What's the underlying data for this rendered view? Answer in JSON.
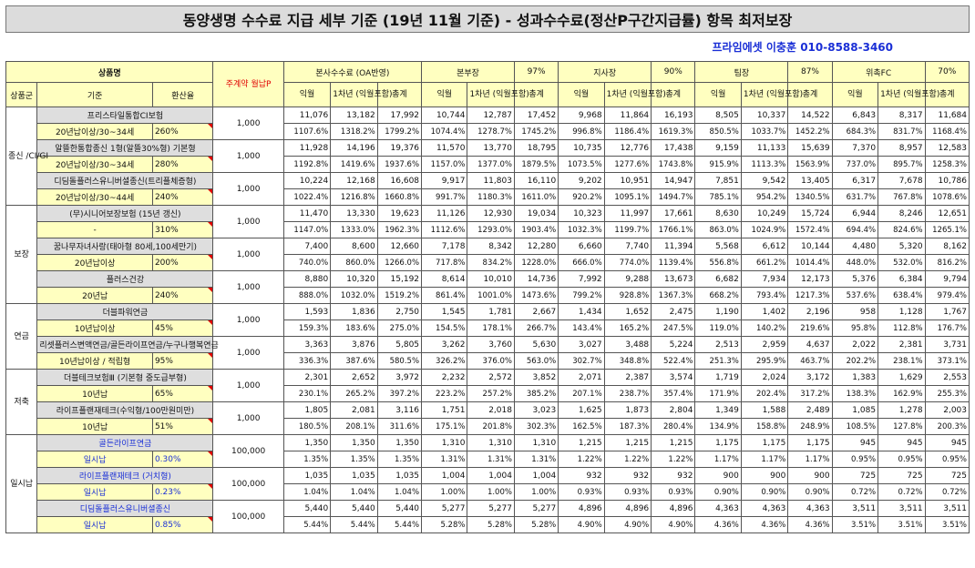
{
  "title": "동양생명 수수료 지급 세부 기준 (19년 11월 기준) - 성과수수료(정산P구간지급률) 항목 최저보장",
  "contact": "프라임에셋 이충훈 010-8588-3460",
  "header": {
    "product_name": "상품명",
    "premium": "주계약 월납P",
    "group": "상품군",
    "criteria": "기준",
    "conversion": "환산율",
    "roles": [
      {
        "name": "본사수수료 (OA반영)",
        "rate": ""
      },
      {
        "name": "본부장",
        "rate": "97%"
      },
      {
        "name": "지사장",
        "rate": "90%"
      },
      {
        "name": "팀장",
        "rate": "87%"
      },
      {
        "name": "위촉FC",
        "rate": "70%"
      }
    ],
    "sub": [
      "익월",
      "1차년 (익월포함)",
      "총계"
    ]
  },
  "groups": [
    {
      "name": "종신 /CI/GI",
      "products": [
        {
          "name": "프리스타일통합CI보험",
          "criteria": "20년납이상/30~34세",
          "rate": "260%",
          "premium": "1,000",
          "amounts": [
            "11,076",
            "13,182",
            "17,992",
            "10,744",
            "12,787",
            "17,452",
            "9,968",
            "11,864",
            "16,193",
            "8,505",
            "10,337",
            "14,522",
            "6,843",
            "8,317",
            "11,684"
          ],
          "percents": [
            "1107.6%",
            "1318.2%",
            "1799.2%",
            "1074.4%",
            "1278.7%",
            "1745.2%",
            "996.8%",
            "1186.4%",
            "1619.3%",
            "850.5%",
            "1033.7%",
            "1452.2%",
            "684.3%",
            "831.7%",
            "1168.4%"
          ]
        },
        {
          "name": "알뜰한통합종신 1형(알뜰30%형) 기본형",
          "criteria": "20년납이상/30~34세",
          "rate": "280%",
          "premium": "1,000",
          "amounts": [
            "11,928",
            "14,196",
            "19,376",
            "11,570",
            "13,770",
            "18,795",
            "10,735",
            "12,776",
            "17,438",
            "9,159",
            "11,133",
            "15,639",
            "7,370",
            "8,957",
            "12,583"
          ],
          "percents": [
            "1192.8%",
            "1419.6%",
            "1937.6%",
            "1157.0%",
            "1377.0%",
            "1879.5%",
            "1073.5%",
            "1277.6%",
            "1743.8%",
            "915.9%",
            "1113.3%",
            "1563.9%",
            "737.0%",
            "895.7%",
            "1258.3%"
          ]
        },
        {
          "name": "디딤돌플러스유니버셜종신(트리플체증형)",
          "criteria": "20년납이상/30~44세",
          "rate": "240%",
          "premium": "1,000",
          "amounts": [
            "10,224",
            "12,168",
            "16,608",
            "9,917",
            "11,803",
            "16,110",
            "9,202",
            "10,951",
            "14,947",
            "7,851",
            "9,542",
            "13,405",
            "6,317",
            "7,678",
            "10,786"
          ],
          "percents": [
            "1022.4%",
            "1216.8%",
            "1660.8%",
            "991.7%",
            "1180.3%",
            "1611.0%",
            "920.2%",
            "1095.1%",
            "1494.7%",
            "785.1%",
            "954.2%",
            "1340.5%",
            "631.7%",
            "767.8%",
            "1078.6%"
          ]
        }
      ]
    },
    {
      "name": "보장",
      "products": [
        {
          "name": "(무)시니어보장보험 (15년 갱신)",
          "criteria": "-",
          "rate": "310%",
          "premium": "1,000",
          "amounts": [
            "11,470",
            "13,330",
            "19,623",
            "11,126",
            "12,930",
            "19,034",
            "10,323",
            "11,997",
            "17,661",
            "8,630",
            "10,249",
            "15,724",
            "6,944",
            "8,246",
            "12,651"
          ],
          "percents": [
            "1147.0%",
            "1333.0%",
            "1962.3%",
            "1112.6%",
            "1293.0%",
            "1903.4%",
            "1032.3%",
            "1199.7%",
            "1766.1%",
            "863.0%",
            "1024.9%",
            "1572.4%",
            "694.4%",
            "824.6%",
            "1265.1%"
          ]
        },
        {
          "name": "꿈나무자녀사랑(태아형 80세,100세만기)",
          "criteria": "20년납이상",
          "rate": "200%",
          "premium": "1,000",
          "amounts": [
            "7,400",
            "8,600",
            "12,660",
            "7,178",
            "8,342",
            "12,280",
            "6,660",
            "7,740",
            "11,394",
            "5,568",
            "6,612",
            "10,144",
            "4,480",
            "5,320",
            "8,162"
          ],
          "percents": [
            "740.0%",
            "860.0%",
            "1266.0%",
            "717.8%",
            "834.2%",
            "1228.0%",
            "666.0%",
            "774.0%",
            "1139.4%",
            "556.8%",
            "661.2%",
            "1014.4%",
            "448.0%",
            "532.0%",
            "816.2%"
          ]
        },
        {
          "name": "플러스건강",
          "criteria": "20년납",
          "rate": "240%",
          "premium": "1,000",
          "amounts": [
            "8,880",
            "10,320",
            "15,192",
            "8,614",
            "10,010",
            "14,736",
            "7,992",
            "9,288",
            "13,673",
            "6,682",
            "7,934",
            "12,173",
            "5,376",
            "6,384",
            "9,794"
          ],
          "percents": [
            "888.0%",
            "1032.0%",
            "1519.2%",
            "861.4%",
            "1001.0%",
            "1473.6%",
            "799.2%",
            "928.8%",
            "1367.3%",
            "668.2%",
            "793.4%",
            "1217.3%",
            "537.6%",
            "638.4%",
            "979.4%"
          ]
        }
      ]
    },
    {
      "name": "연금",
      "products": [
        {
          "name": "더블파워연금",
          "criteria": "10년납이상",
          "rate": "45%",
          "premium": "1,000",
          "amounts": [
            "1,593",
            "1,836",
            "2,750",
            "1,545",
            "1,781",
            "2,667",
            "1,434",
            "1,652",
            "2,475",
            "1,190",
            "1,402",
            "2,196",
            "958",
            "1,128",
            "1,767"
          ],
          "percents": [
            "159.3%",
            "183.6%",
            "275.0%",
            "154.5%",
            "178.1%",
            "266.7%",
            "143.4%",
            "165.2%",
            "247.5%",
            "119.0%",
            "140.2%",
            "219.6%",
            "95.8%",
            "112.8%",
            "176.7%"
          ]
        },
        {
          "name": "리셋플러스변액연금/골든라이프연금/누구나행복연금",
          "criteria": "10년납이상 / 적립형",
          "rate": "95%",
          "premium": "1,000",
          "amounts": [
            "3,363",
            "3,876",
            "5,805",
            "3,262",
            "3,760",
            "5,630",
            "3,027",
            "3,488",
            "5,224",
            "2,513",
            "2,959",
            "4,637",
            "2,022",
            "2,381",
            "3,731"
          ],
          "percents": [
            "336.3%",
            "387.6%",
            "580.5%",
            "326.2%",
            "376.0%",
            "563.0%",
            "302.7%",
            "348.8%",
            "522.4%",
            "251.3%",
            "295.9%",
            "463.7%",
            "202.2%",
            "238.1%",
            "373.1%"
          ]
        }
      ]
    },
    {
      "name": "저축",
      "products": [
        {
          "name": "더블테크보험Ⅲ (기본형 중도급부형)",
          "criteria": "10년납",
          "rate": "65%",
          "premium": "1,000",
          "amounts": [
            "2,301",
            "2,652",
            "3,972",
            "2,232",
            "2,572",
            "3,852",
            "2,071",
            "2,387",
            "3,574",
            "1,719",
            "2,024",
            "3,172",
            "1,383",
            "1,629",
            "2,553"
          ],
          "percents": [
            "230.1%",
            "265.2%",
            "397.2%",
            "223.2%",
            "257.2%",
            "385.2%",
            "207.1%",
            "238.7%",
            "357.4%",
            "171.9%",
            "202.4%",
            "317.2%",
            "138.3%",
            "162.9%",
            "255.3%"
          ]
        },
        {
          "name": "라이프플랜재테크(수익형/100만원미만)",
          "criteria": "10년납",
          "rate": "51%",
          "premium": "1,000",
          "amounts": [
            "1,805",
            "2,081",
            "3,116",
            "1,751",
            "2,018",
            "3,023",
            "1,625",
            "1,873",
            "2,804",
            "1,349",
            "1,588",
            "2,489",
            "1,085",
            "1,278",
            "2,003"
          ],
          "percents": [
            "180.5%",
            "208.1%",
            "311.6%",
            "175.1%",
            "201.8%",
            "302.3%",
            "162.5%",
            "187.3%",
            "280.4%",
            "134.9%",
            "158.8%",
            "248.9%",
            "108.5%",
            "127.8%",
            "200.3%"
          ]
        }
      ]
    },
    {
      "name": "일시납",
      "products": [
        {
          "name": "골든라이프연금",
          "criteria": "일시납",
          "rate": "0.30%",
          "premium": "100,000",
          "amounts": [
            "1,350",
            "1,350",
            "1,350",
            "1,310",
            "1,310",
            "1,310",
            "1,215",
            "1,215",
            "1,215",
            "1,175",
            "1,175",
            "1,175",
            "945",
            "945",
            "945"
          ],
          "percents": [
            "1.35%",
            "1.35%",
            "1.35%",
            "1.31%",
            "1.31%",
            "1.31%",
            "1.22%",
            "1.22%",
            "1.22%",
            "1.17%",
            "1.17%",
            "1.17%",
            "0.95%",
            "0.95%",
            "0.95%"
          ]
        },
        {
          "name": "라이프플랜재테크 (거치형)",
          "criteria": "일시납",
          "rate": "0.23%",
          "premium": "100,000",
          "amounts": [
            "1,035",
            "1,035",
            "1,035",
            "1,004",
            "1,004",
            "1,004",
            "932",
            "932",
            "932",
            "900",
            "900",
            "900",
            "725",
            "725",
            "725"
          ],
          "percents": [
            "1.04%",
            "1.04%",
            "1.04%",
            "1.00%",
            "1.00%",
            "1.00%",
            "0.93%",
            "0.93%",
            "0.93%",
            "0.90%",
            "0.90%",
            "0.90%",
            "0.72%",
            "0.72%",
            "0.72%"
          ]
        },
        {
          "name": "디딤돌플러스유니버셜종신",
          "criteria": "일시납",
          "rate": "0.85%",
          "premium": "100,000",
          "amounts": [
            "5,440",
            "5,440",
            "5,440",
            "5,277",
            "5,277",
            "5,277",
            "4,896",
            "4,896",
            "4,896",
            "4,363",
            "4,363",
            "4,363",
            "3,511",
            "3,511",
            "3,511"
          ],
          "percents": [
            "5.44%",
            "5.44%",
            "5.44%",
            "5.28%",
            "5.28%",
            "5.28%",
            "4.90%",
            "4.90%",
            "4.90%",
            "4.36%",
            "4.36%",
            "4.36%",
            "3.51%",
            "3.51%",
            "3.51%"
          ]
        }
      ]
    }
  ]
}
